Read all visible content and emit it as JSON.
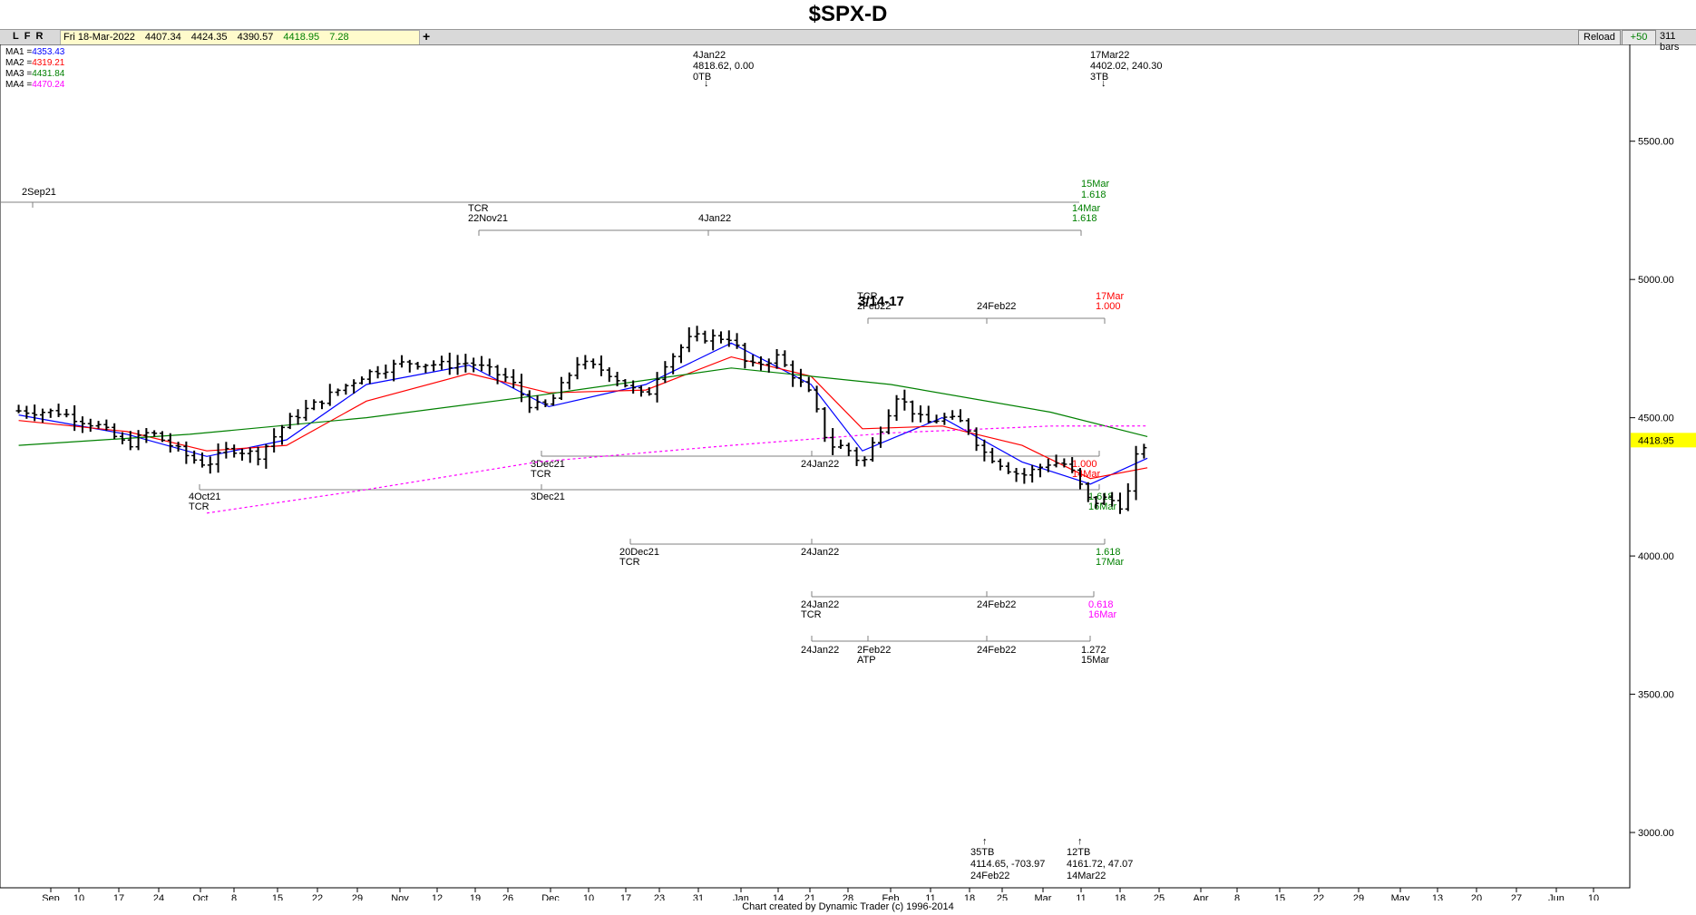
{
  "title": "$SPX-D",
  "toolbar": {
    "letters": [
      "L",
      "F",
      "R"
    ],
    "date": "Fri 18-Mar-2022",
    "open": "4407.34",
    "high": "4424.35",
    "low": "4390.57",
    "close": "4418.95",
    "change": "7.28",
    "plus": "+",
    "reload": "Reload",
    "increment": "+50",
    "bar_count": "311 bars"
  },
  "footer": "Chart created by Dynamic Trader  (c)  1996-2014",
  "chart_data": {
    "type": "bar",
    "ylim": [
      2800,
      5850
    ],
    "log_scale": false,
    "grid": false,
    "y_ticks": [
      "5500.00",
      "5000.00",
      "4500.00",
      "4000.00",
      "3500.00",
      "3000.00"
    ],
    "last_price_label": "4418.95",
    "x_ticks": [
      "Sep",
      "10",
      "17",
      "24",
      "Oct",
      "8",
      "15",
      "22",
      "29",
      "Nov",
      "12",
      "19",
      "26",
      "Dec",
      "10",
      "17",
      "23",
      "31",
      "Jan",
      "14",
      "21",
      "28",
      "Feb",
      "11",
      "18",
      "25",
      "Mar",
      "11",
      "18",
      "25",
      "Apr",
      "8",
      "15",
      "22",
      "29",
      "May",
      "13",
      "20",
      "27",
      "Jun",
      "10"
    ],
    "ma_legend": [
      {
        "label": "MA1 =",
        "value": "4353.43",
        "color": "#0000ff"
      },
      {
        "label": "MA2 =",
        "value": "4319.21",
        "color": "#ff0000"
      },
      {
        "label": "MA3 =",
        "value": "4431.84",
        "color": "#008000"
      },
      {
        "label": "MA4 =",
        "value": "4470.24",
        "color": "#ff00ff"
      }
    ],
    "price_series_dates": [
      "2021-09-01",
      "2021-09-08",
      "2021-09-15",
      "2021-09-20",
      "2021-09-24",
      "2021-10-01",
      "2021-10-04",
      "2021-10-08",
      "2021-10-13",
      "2021-10-18",
      "2021-10-25",
      "2021-11-01",
      "2021-11-08",
      "2021-11-15",
      "2021-11-19",
      "2021-11-26",
      "2021-11-30",
      "2021-12-03",
      "2021-12-08",
      "2021-12-13",
      "2021-12-20",
      "2021-12-23",
      "2021-12-28",
      "2022-01-04",
      "2022-01-07",
      "2022-01-12",
      "2022-01-18",
      "2022-01-21",
      "2022-01-24",
      "2022-01-27",
      "2022-02-02",
      "2022-02-07",
      "2022-02-10",
      "2022-02-14",
      "2022-02-17",
      "2022-02-22",
      "2022-02-24",
      "2022-03-01",
      "2022-03-04",
      "2022-03-08",
      "2022-03-11",
      "2022-03-14",
      "2022-03-16",
      "2022-03-18"
    ],
    "price_series_close": [
      4525,
      4520,
      4470,
      4400,
      4450,
      4355,
      4330,
      4390,
      4365,
      4485,
      4575,
      4660,
      4700,
      4690,
      4700,
      4640,
      4540,
      4545,
      4700,
      4670,
      4570,
      4690,
      4790,
      4790,
      4680,
      4720,
      4580,
      4400,
      4395,
      4330,
      4580,
      4480,
      4500,
      4480,
      4380,
      4310,
      4290,
      4340,
      4330,
      4190,
      4210,
      4175,
      4355,
      4418.95
    ],
    "series": [
      {
        "name": "MA1",
        "color": "#0000ff",
        "dates": [
          "2021-09-01",
          "2021-09-20",
          "2021-10-04",
          "2021-10-18",
          "2021-11-01",
          "2021-11-19",
          "2021-12-03",
          "2021-12-20",
          "2022-01-04",
          "2022-01-18",
          "2022-01-27",
          "2022-02-10",
          "2022-02-24",
          "2022-03-08",
          "2022-03-18"
        ],
        "values": [
          4510,
          4440,
          4360,
          4420,
          4620,
          4690,
          4540,
          4620,
          4770,
          4620,
          4380,
          4500,
          4340,
          4260,
          4353.43
        ]
      },
      {
        "name": "MA2",
        "color": "#ff0000",
        "dates": [
          "2021-09-01",
          "2021-09-20",
          "2021-10-04",
          "2021-10-18",
          "2021-11-01",
          "2021-11-19",
          "2021-12-03",
          "2021-12-20",
          "2022-01-04",
          "2022-01-18",
          "2022-01-27",
          "2022-02-10",
          "2022-02-24",
          "2022-03-08",
          "2022-03-18"
        ],
        "values": [
          4490,
          4450,
          4380,
          4400,
          4560,
          4660,
          4590,
          4600,
          4720,
          4650,
          4460,
          4470,
          4400,
          4280,
          4319.21
        ]
      },
      {
        "name": "MA3",
        "color": "#008000",
        "dates": [
          "2021-09-01",
          "2021-10-01",
          "2021-11-01",
          "2021-12-01",
          "2022-01-04",
          "2022-02-01",
          "2022-03-01",
          "2022-03-18"
        ],
        "values": [
          4400,
          4440,
          4500,
          4580,
          4680,
          4620,
          4520,
          4431.84
        ]
      },
      {
        "name": "MA4",
        "color": "#ff00ff",
        "dates": [
          "2021-10-04",
          "2021-11-01",
          "2021-12-01",
          "2022-01-04",
          "2022-02-01",
          "2022-03-01",
          "2022-03-18"
        ],
        "values": [
          4155,
          4240,
          4340,
          4400,
          4445,
          4470,
          4470.24
        ]
      }
    ],
    "annotations": [
      {
        "text": [
          "4Jan22",
          "4818.62, 0.00",
          "0TB"
        ],
        "arrow": "down",
        "color": "#000"
      },
      {
        "text": [
          "17Mar22",
          "4402.02, 240.30",
          "3TB"
        ],
        "arrow": "down",
        "color": "#000"
      },
      {
        "text": [
          "3/14-17"
        ],
        "color": "#000",
        "bold": true
      },
      {
        "text": [
          "35TB",
          "4114.65, -703.97",
          "24Feb22"
        ],
        "arrow": "up",
        "color": "#000"
      },
      {
        "text": [
          "12TB",
          "4161.72, 47.07",
          "14Mar22"
        ],
        "arrow": "up",
        "color": "#000"
      }
    ],
    "time_projections": [
      {
        "labels": [
          "2Sep21"
        ],
        "end_label": [
          "15Mar",
          "1.618"
        ],
        "end_color": "#008000"
      },
      {
        "labels": [
          "TCR 22Nov21",
          "4Jan22"
        ],
        "end_label": [
          "14Mar",
          "1.618"
        ],
        "end_color": "#008000"
      },
      {
        "labels": [
          "TCR 2Feb22",
          "24Feb22"
        ],
        "end_label": [
          "17Mar",
          "1.000"
        ],
        "end_color": "#ff0000"
      },
      {
        "labels": [
          "3Dec21 TCR",
          "24Jan22"
        ],
        "end_label": [
          "1.000",
          "14Mar"
        ],
        "end_color": "#ff0000"
      },
      {
        "labels": [
          "4Oct21 TCR",
          "3Dec21"
        ],
        "end_label": [
          "1.618",
          "16Mar"
        ],
        "end_color": "#008000"
      },
      {
        "labels": [
          "20Dec21 TCR",
          "24Jan22"
        ],
        "end_label": [
          "1.618",
          "17Mar"
        ],
        "end_color": "#008000"
      },
      {
        "labels": [
          "24Jan22 TCR",
          "24Feb22"
        ],
        "end_label": [
          "0.618",
          "16Mar"
        ],
        "end_color": "#ff00ff"
      },
      {
        "labels": [
          "24Jan22",
          "2Feb22 ATP",
          "24Feb22"
        ],
        "end_label": [
          "1.272",
          "15Mar"
        ],
        "end_color": "#000"
      }
    ]
  }
}
